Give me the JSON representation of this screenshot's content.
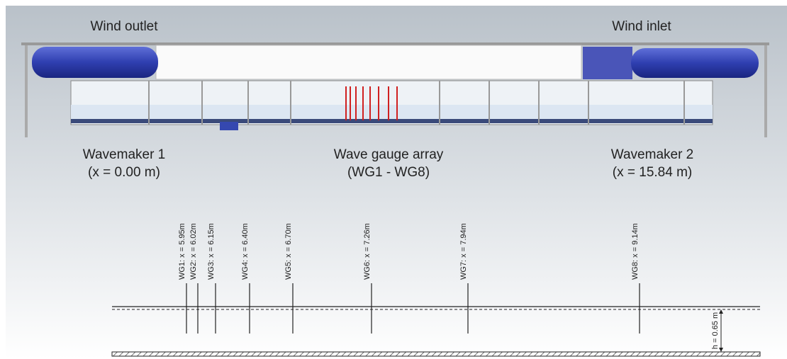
{
  "labels": {
    "wind_outlet": "Wind outlet",
    "wind_inlet": "Wind inlet",
    "wavemaker1": {
      "name": "Wavemaker 1",
      "position": "(x = 0.00 m)"
    },
    "array": {
      "name": "Wave gauge array",
      "range": "(WG1 - WG8)"
    },
    "wavemaker2": {
      "name": "Wavemaker 2",
      "position": "(x = 15.84 m)"
    }
  },
  "gauges": [
    "WG1: x = 5.95m",
    "WG2: x = 6.02m",
    "WG3: x = 6.15m",
    "WG4: x = 6.40m",
    "WG5: x = 6.70m",
    "WG6: x = 7.26m",
    "WG7: x = 7.94m",
    "WG8: x = 9.14m"
  ],
  "depth": "h = 0.65 m"
}
